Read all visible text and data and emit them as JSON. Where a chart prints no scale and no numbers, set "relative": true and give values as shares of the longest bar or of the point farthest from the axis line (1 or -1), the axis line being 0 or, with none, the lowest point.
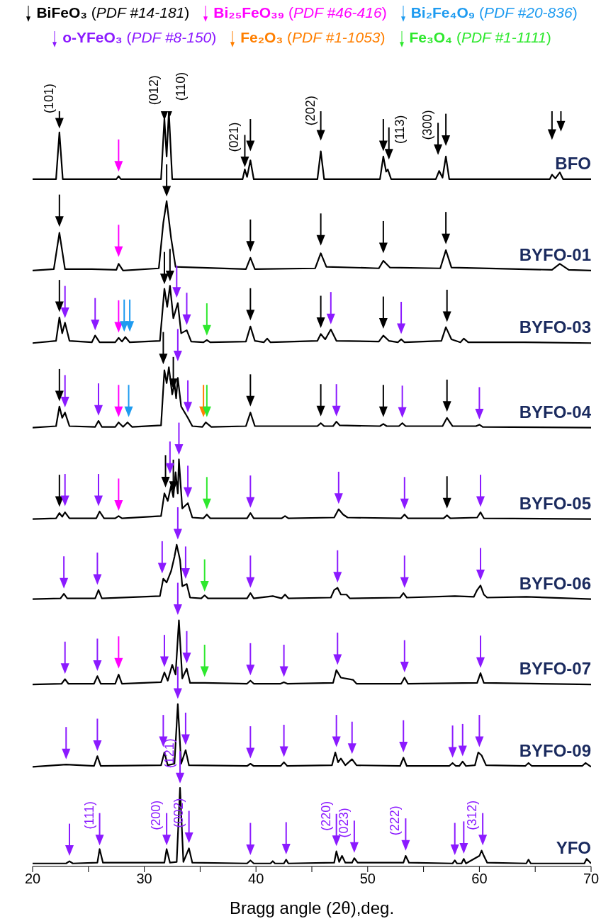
{
  "chart_data": {
    "type": "line",
    "relative": true,
    "xlabel": "Bragg angle (2θ),deg.",
    "xlim": [
      20,
      70
    ],
    "xticks": [
      20,
      {
        "value": 25,
        "label": null
      },
      30,
      {
        "value": 35,
        "label": null
      },
      40,
      {
        "value": 45,
        "label": null
      },
      50,
      {
        "value": 55,
        "label": null
      },
      60,
      {
        "value": 65,
        "label": null
      },
      70
    ],
    "legend": "top",
    "series": [
      {
        "name": "BFO",
        "color": "#000000",
        "x": [
          20,
          22.1,
          22.4,
          22.7,
          27.5,
          27.7,
          27.9,
          31.5,
          31.8,
          32.0,
          32.2,
          32.5,
          38.8,
          39.0,
          39.2,
          39.5,
          39.8,
          45.5,
          45.8,
          46.1,
          51.1,
          51.4,
          51.65,
          51.8,
          52.1,
          56.1,
          56.4,
          56.7,
          57.0,
          57.3,
          66.3,
          66.5,
          66.8,
          67.2,
          67.5,
          70
        ],
        "values": [
          0.91,
          0.91,
          0.972,
          0.91,
          0.91,
          0.914,
          0.91,
          0.91,
          0.99,
          0.94,
          1,
          0.91,
          0.91,
          0.923,
          0.913,
          0.935,
          0.91,
          0.91,
          0.947,
          0.91,
          0.91,
          0.94,
          0.92,
          0.923,
          0.91,
          0.91,
          0.921,
          0.912,
          0.94,
          0.91,
          0.91,
          0.916,
          0.911,
          0.919,
          0.91,
          0.91
        ]
      },
      {
        "name": "BYFO-01",
        "color": "#000000",
        "x": [
          20,
          21.9,
          22.4,
          22.9,
          25.3,
          27.5,
          27.7,
          28.1,
          31.3,
          31.7,
          32.0,
          32.4,
          32.8,
          39.1,
          39.5,
          39.9,
          45.3,
          45.8,
          46.3,
          51.0,
          51.4,
          52,
          56.5,
          57.0,
          57.5,
          66.5,
          67.2,
          68,
          70
        ],
        "values": [
          0.789,
          0.791,
          0.839,
          0.791,
          0.791,
          0.79,
          0.798,
          0.789,
          0.792,
          0.852,
          0.881,
          0.832,
          0.794,
          0.791,
          0.806,
          0.791,
          0.792,
          0.812,
          0.794,
          0.792,
          0.802,
          0.793,
          0.792,
          0.816,
          0.793,
          0.79,
          0.798,
          0.79,
          0.789
        ]
      },
      {
        "name": "BYFO-03",
        "color": "#000000",
        "x": [
          20,
          22.1,
          22.4,
          22.65,
          22.9,
          23.3,
          25.3,
          25.6,
          26,
          27.4,
          27.7,
          28.0,
          28.3,
          28.7,
          31.4,
          31.8,
          32.05,
          32.3,
          32.6,
          33.0,
          33.3,
          33.8,
          34.2,
          35.3,
          35.6,
          35.9,
          39.1,
          39.5,
          39.9,
          40.7,
          41,
          41.3,
          45.5,
          45.8,
          46.2,
          46.7,
          47.2,
          51.0,
          51.4,
          51.9,
          52.7,
          53,
          53.3,
          56.6,
          57.0,
          57.5,
          58.3,
          58.6,
          59,
          64,
          70
        ],
        "values": [
          0.693,
          0.696,
          0.727,
          0.706,
          0.72,
          0.696,
          0.694,
          0.703,
          0.694,
          0.694,
          0.7,
          0.695,
          0.701,
          0.694,
          0.696,
          0.765,
          0.741,
          0.769,
          0.726,
          0.746,
          0.706,
          0.71,
          0.695,
          0.694,
          0.697,
          0.694,
          0.695,
          0.715,
          0.696,
          0.694,
          0.699,
          0.694,
          0.696,
          0.705,
          0.698,
          0.711,
          0.696,
          0.695,
          0.703,
          0.696,
          0.694,
          0.698,
          0.694,
          0.696,
          0.714,
          0.698,
          0.694,
          0.699,
          0.694,
          0.694,
          0.693
        ]
      },
      {
        "name": "BYFO-04",
        "color": "#000000",
        "x": [
          20,
          22.1,
          22.4,
          22.65,
          22.9,
          23.3,
          25.6,
          25.9,
          26.2,
          27.4,
          27.7,
          28.1,
          28.5,
          28.9,
          31.5,
          31.8,
          32.0,
          32.2,
          32.5,
          32.7,
          32.85,
          33.0,
          33.3,
          33.9,
          34.3,
          35.2,
          35.5,
          36,
          39.1,
          39.5,
          39.9,
          45.5,
          45.8,
          46.1,
          46.9,
          47.2,
          47.5,
          51.1,
          51.4,
          51.7,
          52.8,
          53.1,
          53.4,
          56.7,
          57.1,
          57.6,
          59.7,
          60.0,
          60.3,
          70
        ],
        "values": [
          0.581,
          0.583,
          0.609,
          0.594,
          0.601,
          0.583,
          0.582,
          0.59,
          0.582,
          0.582,
          0.588,
          0.582,
          0.588,
          0.582,
          0.584,
          0.657,
          0.64,
          0.661,
          0.625,
          0.64,
          0.62,
          0.647,
          0.609,
          0.594,
          0.583,
          0.582,
          0.588,
          0.582,
          0.583,
          0.601,
          0.583,
          0.583,
          0.587,
          0.583,
          0.583,
          0.589,
          0.584,
          0.583,
          0.586,
          0.583,
          0.583,
          0.587,
          0.583,
          0.583,
          0.594,
          0.583,
          0.583,
          0.585,
          0.582,
          0.581
        ]
      },
      {
        "name": "BYFO-05",
        "color": "#000000",
        "x": [
          20,
          22.1,
          22.4,
          22.65,
          22.9,
          23.3,
          25.7,
          26.0,
          26.4,
          27.4,
          27.7,
          28.0,
          31.5,
          31.8,
          32.1,
          32.4,
          32.6,
          32.8,
          33.0,
          33.1,
          33.4,
          33.9,
          34.3,
          35.3,
          35.6,
          35.9,
          39.2,
          39.5,
          39.8,
          42.3,
          42.6,
          42.9,
          47.0,
          47.4,
          47.8,
          48.2,
          53.0,
          53.3,
          53.6,
          56.8,
          57.1,
          57.4,
          59.8,
          60.1,
          60.4,
          70
        ],
        "values": [
          0.46,
          0.461,
          0.468,
          0.463,
          0.469,
          0.461,
          0.461,
          0.47,
          0.461,
          0.461,
          0.464,
          0.461,
          0.464,
          0.494,
          0.484,
          0.504,
          0.489,
          0.522,
          0.494,
          0.539,
          0.474,
          0.481,
          0.462,
          0.461,
          0.466,
          0.461,
          0.461,
          0.468,
          0.461,
          0.461,
          0.464,
          0.461,
          0.462,
          0.473,
          0.466,
          0.462,
          0.461,
          0.466,
          0.461,
          0.461,
          0.465,
          0.461,
          0.462,
          0.469,
          0.461,
          0.46
        ]
      },
      {
        "name": "BYFO-06",
        "color": "#000000",
        "x": [
          20,
          22.5,
          22.8,
          23.1,
          25.6,
          25.9,
          26.2,
          31.4,
          31.7,
          32.0,
          32.4,
          32.7,
          32.9,
          33.2,
          33.4,
          33.8,
          34.1,
          35.1,
          35.4,
          35.7,
          39.2,
          39.5,
          39.8,
          41.5,
          42.3,
          42.6,
          42.9,
          46.7,
          47.0,
          47.3,
          47.6,
          48.1,
          48.4,
          52.9,
          53.2,
          53.5,
          57.8,
          59.5,
          59.8,
          60.1,
          60.4,
          60.7,
          64.2,
          70
        ],
        "values": [
          0.354,
          0.355,
          0.361,
          0.355,
          0.355,
          0.366,
          0.355,
          0.358,
          0.381,
          0.376,
          0.391,
          0.41,
          0.426,
          0.406,
          0.371,
          0.374,
          0.356,
          0.355,
          0.359,
          0.355,
          0.355,
          0.362,
          0.355,
          0.358,
          0.355,
          0.36,
          0.355,
          0.356,
          0.366,
          0.369,
          0.36,
          0.36,
          0.355,
          0.356,
          0.362,
          0.356,
          0.358,
          0.357,
          0.366,
          0.372,
          0.36,
          0.356,
          0.357,
          0.354
        ]
      },
      {
        "name": "BYFO-07",
        "color": "#000000",
        "x": [
          20,
          22.6,
          22.9,
          23.2,
          25.5,
          25.8,
          26.1,
          27.4,
          27.7,
          28.0,
          31.5,
          31.8,
          32.1,
          32.5,
          32.8,
          33.1,
          33.4,
          33.8,
          34.1,
          35.4,
          39.2,
          39.5,
          39.8,
          42.2,
          42.5,
          42.8,
          46.9,
          47.2,
          47.6,
          48.7,
          49.0,
          53.0,
          53.3,
          53.6,
          59.8,
          60.1,
          60.4,
          70
        ],
        "values": [
          0.241,
          0.242,
          0.248,
          0.242,
          0.242,
          0.252,
          0.242,
          0.242,
          0.254,
          0.242,
          0.244,
          0.257,
          0.246,
          0.267,
          0.254,
          0.326,
          0.249,
          0.262,
          0.243,
          0.243,
          0.242,
          0.246,
          0.242,
          0.242,
          0.244,
          0.242,
          0.243,
          0.26,
          0.25,
          0.247,
          0.242,
          0.242,
          0.25,
          0.242,
          0.243,
          0.256,
          0.243,
          0.241
        ]
      },
      {
        "name": "BYFO-09",
        "color": "#000000",
        "x": [
          20,
          23.0,
          25.5,
          25.8,
          26.1,
          31.5,
          31.8,
          32.1,
          32.7,
          33.0,
          33.3,
          33.7,
          34.0,
          39.2,
          39.5,
          39.8,
          42.2,
          42.5,
          42.8,
          46.8,
          47.1,
          47.35,
          47.6,
          48.0,
          48.6,
          49,
          52.9,
          53.2,
          53.5,
          57.3,
          57.6,
          57.9,
          58.2,
          58.5,
          58.8,
          59.6,
          59.9,
          60.2,
          60.6,
          64.1,
          64.4,
          64.7,
          69.2,
          69.5,
          70
        ],
        "values": [
          0.132,
          0.135,
          0.133,
          0.146,
          0.133,
          0.134,
          0.151,
          0.134,
          0.136,
          0.215,
          0.136,
          0.154,
          0.134,
          0.133,
          0.136,
          0.133,
          0.133,
          0.138,
          0.133,
          0.134,
          0.151,
          0.138,
          0.143,
          0.134,
          0.142,
          0.134,
          0.133,
          0.144,
          0.133,
          0.133,
          0.137,
          0.133,
          0.133,
          0.139,
          0.133,
          0.134,
          0.151,
          0.147,
          0.134,
          0.133,
          0.137,
          0.133,
          0.133,
          0.137,
          0.132
        ]
      },
      {
        "name": "YFO",
        "color": "#000000",
        "x": [
          20,
          23.0,
          23.3,
          23.6,
          25.8,
          26.0,
          26.3,
          31.8,
          32.0,
          32.3,
          32.9,
          33.2,
          33.5,
          34.0,
          34.3,
          39.2,
          39.5,
          39.8,
          41.3,
          41.5,
          41.7,
          42.5,
          42.7,
          42.9,
          47.0,
          47.2,
          47.45,
          47.7,
          48.0,
          48.6,
          48.8,
          49.1,
          53.2,
          53.4,
          53.7,
          57.6,
          57.8,
          58.0,
          58.4,
          58.6,
          58.8,
          60.0,
          60.2,
          60.4,
          60.7,
          64.2,
          64.4,
          64.6,
          69.4,
          69.6,
          70
        ],
        "values": [
          0.004,
          0.004,
          0.007,
          0.004,
          0.005,
          0.023,
          0.005,
          0.005,
          0.023,
          0.005,
          0.006,
          0.104,
          0.006,
          0.024,
          0.005,
          0.004,
          0.008,
          0.004,
          0.004,
          0.007,
          0.004,
          0.004,
          0.009,
          0.004,
          0.005,
          0.02,
          0.006,
          0.014,
          0.005,
          0.005,
          0.011,
          0.005,
          0.005,
          0.014,
          0.005,
          0.004,
          0.008,
          0.004,
          0.004,
          0.01,
          0.004,
          0.014,
          0.021,
          0.014,
          0.005,
          0.004,
          0.009,
          0.004,
          0.004,
          0.01,
          0.004
        ]
      },
      {
        "type": "scatter",
        "name": "BiFeO₃ (PDF #14-181)",
        "color": "#000000",
        "x": [
          22.4,
          31.8,
          32.3,
          39.0,
          39.5,
          45.8,
          51.4,
          51.9,
          56.3,
          57.0,
          66.5,
          67.3,
          22.4,
          32.0,
          39.5,
          45.8,
          51.4,
          57.0,
          22.4,
          31.8,
          32.3,
          39.5,
          45.8,
          51.4,
          57.1,
          22.4,
          31.7,
          32.6,
          39.5,
          45.8,
          51.4,
          57.1,
          22.4,
          31.9,
          32.6,
          57.1
        ],
        "values": [
          0.984,
          0.995,
          1.0,
          0.933,
          0.954,
          0.968,
          0.954,
          0.943,
          0.949,
          0.961,
          0.969,
          0.98,
          0.854,
          0.894,
          0.821,
          0.829,
          0.819,
          0.831,
          0.741,
          0.778,
          0.782,
          0.73,
          0.72,
          0.719,
          0.728,
          0.623,
          0.672,
          0.639,
          0.616,
          0.603,
          0.602,
          0.609,
          0.483,
          0.509,
          0.503,
          0.481
        ]
      },
      {
        "type": "scatter",
        "name": "Bi₂₅FeO₃₉ (PDF #46-416)",
        "color": "#ff00ff",
        "x": [
          27.7,
          27.7,
          27.7,
          27.7,
          27.7,
          27.7
        ],
        "values": [
          0.927,
          0.814,
          0.714,
          0.602,
          0.478,
          0.269
        ]
      },
      {
        "type": "scatter",
        "name": "Bi₂Fe₄O₉ (PDF #20-836)",
        "color": "#1e9bf0",
        "x": [
          28.2,
          28.7,
          28.6
        ],
        "values": [
          0.715,
          0.715,
          0.602
        ]
      },
      {
        "type": "scatter",
        "name": "o-YFeO₃ (PDF #8-150)",
        "color": "#8b1aff",
        "x": [
          22.9,
          25.6,
          32.9,
          33.8,
          46.7,
          53.0,
          22.9,
          25.9,
          33.0,
          33.9,
          47.2,
          53.1,
          60.0,
          22.9,
          25.9,
          32.3,
          33.1,
          33.9,
          39.5,
          47.4,
          53.3,
          60.1,
          22.8,
          25.8,
          31.6,
          33.0,
          33.7,
          39.5,
          47.3,
          53.3,
          60.1,
          22.9,
          25.8,
          31.8,
          33.0,
          33.8,
          39.5,
          42.5,
          47.3,
          53.3,
          60.1,
          23.0,
          25.8,
          31.7,
          33.0,
          33.7,
          39.5,
          42.5,
          47.2,
          48.6,
          53.2,
          57.6,
          58.5,
          60.0,
          23.3,
          26.0,
          32.0,
          33.2,
          34.0,
          39.5,
          42.7,
          47.2,
          48.8,
          53.4,
          57.8,
          58.6,
          60.3
        ],
        "values": [
          0.733,
          0.717,
          0.76,
          0.724,
          0.725,
          0.712,
          0.615,
          0.604,
          0.676,
          0.608,
          0.603,
          0.601,
          0.599,
          0.484,
          0.484,
          0.527,
          0.552,
          0.495,
          0.482,
          0.487,
          0.48,
          0.483,
          0.375,
          0.38,
          0.395,
          0.44,
          0.388,
          0.376,
          0.383,
          0.376,
          0.386,
          0.262,
          0.266,
          0.271,
          0.34,
          0.276,
          0.26,
          0.258,
          0.274,
          0.264,
          0.27,
          0.149,
          0.16,
          0.165,
          0.229,
          0.168,
          0.15,
          0.152,
          0.165,
          0.156,
          0.158,
          0.151,
          0.153,
          0.165,
          0.021,
          0.035,
          0.035,
          0.117,
          0.038,
          0.022,
          0.023,
          0.034,
          0.025,
          0.028,
          0.022,
          0.024,
          0.035
        ]
      },
      {
        "type": "scatter",
        "name": "Fe₂O₃ (PDF #1-1053)",
        "color": "#ff7f00",
        "x": [
          35.3
        ],
        "values": [
          0.602
        ]
      },
      {
        "type": "scatter",
        "name": "Fe₃O₄ (PDF #1-1111)",
        "color": "#2ee82e",
        "x": [
          35.6,
          35.6,
          35.6,
          35.4,
          35.4
        ],
        "values": [
          0.71,
          0.602,
          0.48,
          0.371,
          0.258
        ]
      }
    ],
    "annotations": [
      {
        "text": "(101)",
        "x": 22.4,
        "y": 0.984
      },
      {
        "text": "(012)",
        "x": 31.8,
        "y": 0.995
      },
      {
        "text": "(110)",
        "x": 32.3,
        "y": 1.0
      },
      {
        "text": "(021)",
        "x": 39.0,
        "y": 0.933
      },
      {
        "text": "(202)",
        "x": 45.8,
        "y": 0.968
      },
      {
        "text": "(113)",
        "x": 51.9,
        "y": 0.943
      },
      {
        "text": "(300)",
        "x": 56.3,
        "y": 0.949
      },
      {
        "text": "(111)",
        "x": 26.0,
        "y": 0.035
      },
      {
        "text": "(200)",
        "x": 32.0,
        "y": 0.035
      },
      {
        "text": "(121)",
        "x": 33.2,
        "y": 0.117
      },
      {
        "text": "(002)",
        "x": 34.0,
        "y": 0.038
      },
      {
        "text": "(220)",
        "x": 47.2,
        "y": 0.034
      },
      {
        "text": "(023)",
        "x": 48.8,
        "y": 0.025
      },
      {
        "text": "(222)",
        "x": 53.4,
        "y": 0.028
      },
      {
        "text": "(312)",
        "x": 60.3,
        "y": 0.035
      }
    ]
  }
}
